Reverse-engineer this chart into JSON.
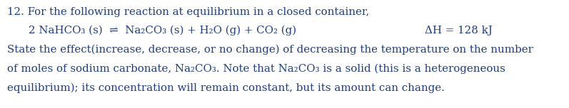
{
  "background_color": "#ffffff",
  "text_color": "#1f3d7a",
  "figsize": [
    7.97,
    1.52
  ],
  "dpi": 100,
  "font_family": "DejaVu Serif",
  "font_size": 10.8,
  "line1": "12. For the following reaction at equilibrium in a closed container,",
  "eq_indent": "    2 NaHCO",
  "eq_sub3a": "3",
  "eq_mid": " (s)  ⇌  Na",
  "eq_sub2a": "2",
  "eq_co3": "CO",
  "eq_sub3b": "3",
  "eq_rest": " (s) + H",
  "eq_sub2b": "2",
  "eq_o": "O (g) + CO",
  "eq_sub2c": "2",
  "eq_end": " (g)",
  "dh": "ΔH = 128 kJ",
  "line3": "State the effect(increase, decrease, or no change) of decreasing the temperature on the number",
  "line4a": "of moles of sodium carbonate, Na",
  "line4_sub2": "2",
  "line4b": "CO",
  "line4_sub3": "3",
  "line4c": ". Note that Na",
  "line4_sub2b": "2",
  "line4d": "CO",
  "line4_sub3b": "3",
  "line4e": " is a solid (this is a heterogeneous",
  "line5": "equilibrium); its concentration will remain constant, but its amount can change."
}
